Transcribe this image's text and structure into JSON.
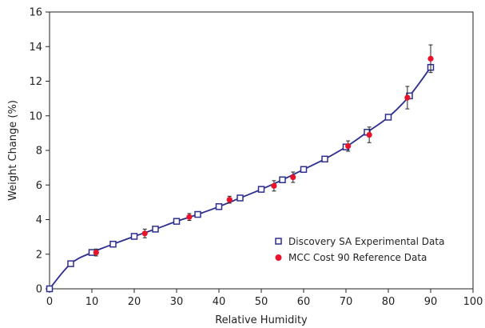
{
  "chart_data": {
    "type": "scatter",
    "xlabel": "Relative Humidity",
    "ylabel": "Weight Change (%)",
    "xlim": [
      0,
      100
    ],
    "ylim": [
      0,
      16
    ],
    "xticks": [
      0,
      10,
      20,
      30,
      40,
      50,
      60,
      70,
      80,
      90,
      100
    ],
    "yticks": [
      0,
      2,
      4,
      6,
      8,
      10,
      12,
      14,
      16
    ],
    "grid": false,
    "legend_position": "bottom-right",
    "series": [
      {
        "name": "Discovery SA Experimental Data",
        "marker": "open-square",
        "color": "#2e2e8f",
        "fit_line": true,
        "x": [
          0,
          5,
          10,
          15,
          20,
          25,
          30,
          35,
          40,
          45,
          50,
          55,
          60,
          65,
          70,
          75,
          80,
          85,
          90
        ],
        "y": [
          0,
          1.45,
          2.1,
          2.58,
          3.03,
          3.45,
          3.9,
          4.3,
          4.75,
          5.25,
          5.75,
          6.3,
          6.9,
          7.5,
          8.2,
          9.05,
          9.92,
          11.15,
          12.8
        ]
      },
      {
        "name": "MCC Cost 90 Reference Data",
        "marker": "filled-circle",
        "color": "#e8132a",
        "error_bars": true,
        "x": [
          11,
          22.5,
          33,
          42.5,
          53,
          57.5,
          70.5,
          75.5,
          84.5,
          90
        ],
        "y": [
          2.1,
          3.2,
          4.15,
          5.15,
          5.95,
          6.45,
          8.25,
          8.9,
          11.05,
          13.3
        ],
        "err": [
          0.2,
          0.25,
          0.2,
          0.2,
          0.3,
          0.3,
          0.3,
          0.45,
          0.65,
          0.8
        ]
      }
    ]
  },
  "colors": {
    "curve": "#2e2e8f",
    "axis": "#222222",
    "error_bar": "#222222"
  }
}
